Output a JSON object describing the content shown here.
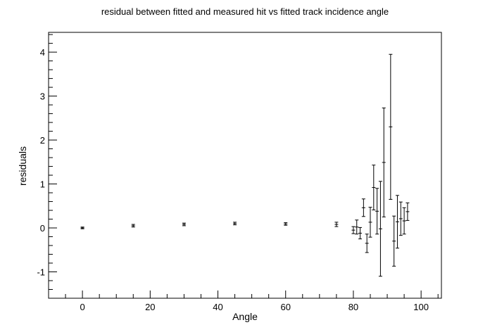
{
  "chart_data": {
    "type": "scatter",
    "title": "residual between fitted and measured hit vs fitted track incidence angle",
    "xlabel": "Angle",
    "ylabel": "residuals",
    "xlim": [
      -10,
      106
    ],
    "ylim": [
      -1.6,
      4.45
    ],
    "xticks": [
      0,
      20,
      40,
      60,
      80,
      100
    ],
    "yticks": [
      -1,
      0,
      1,
      2,
      3,
      4
    ],
    "grid": false,
    "series": [
      {
        "points": [
          {
            "x": 0,
            "y": 0.0,
            "err": 0.02
          },
          {
            "x": 15,
            "y": 0.05,
            "err": 0.03
          },
          {
            "x": 30,
            "y": 0.08,
            "err": 0.03
          },
          {
            "x": 45,
            "y": 0.1,
            "err": 0.03
          },
          {
            "x": 60,
            "y": 0.09,
            "err": 0.03
          },
          {
            "x": 75,
            "y": 0.08,
            "err": 0.05
          },
          {
            "x": 80,
            "y": -0.05,
            "err": 0.08
          },
          {
            "x": 81,
            "y": 0.02,
            "err": 0.16
          },
          {
            "x": 82,
            "y": -0.12,
            "err": 0.13
          },
          {
            "x": 83,
            "y": 0.46,
            "err": 0.2
          },
          {
            "x": 84,
            "y": -0.35,
            "err": 0.21
          },
          {
            "x": 85,
            "y": 0.13,
            "err": 0.34
          },
          {
            "x": 86,
            "y": 0.92,
            "err": 0.51
          },
          {
            "x": 87,
            "y": 0.38,
            "err": 0.52
          },
          {
            "x": 88,
            "y": -0.02,
            "err": 1.08
          },
          {
            "x": 89,
            "y": 1.49,
            "err": 1.24
          },
          {
            "x": 91,
            "y": 2.3,
            "err": 1.65
          },
          {
            "x": 92,
            "y": -0.3,
            "err": 0.57
          },
          {
            "x": 93,
            "y": 0.14,
            "err": 0.6
          },
          {
            "x": 94,
            "y": 0.21,
            "err": 0.38
          },
          {
            "x": 95,
            "y": 0.16,
            "err": 0.3
          },
          {
            "x": 96,
            "y": 0.37,
            "err": 0.2
          }
        ]
      }
    ]
  }
}
